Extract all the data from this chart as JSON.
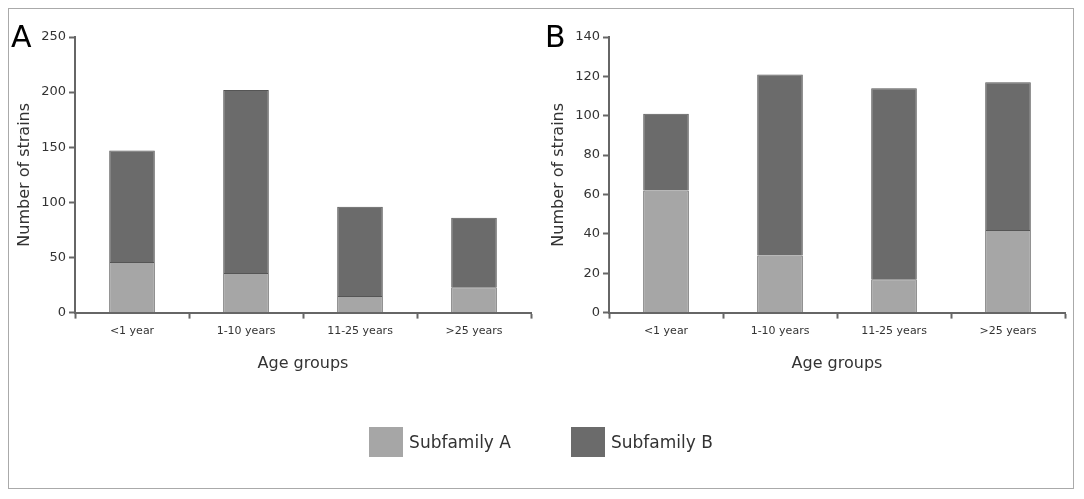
{
  "chart_data": [
    {
      "type": "bar",
      "title": "A",
      "xlabel": "Age groups",
      "ylabel": "Number of strains",
      "categories": [
        "<1 year",
        "1-10 years",
        "11-25 years",
        ">25 years"
      ],
      "stacked": true,
      "ylim": [
        0,
        250
      ],
      "yticks": [
        0,
        50,
        100,
        150,
        200,
        250
      ],
      "grid": false,
      "legend": "bottom",
      "series": [
        {
          "name": "Subfamily A",
          "color": "#a6a6a6",
          "values": [
            46,
            36,
            15,
            23
          ]
        },
        {
          "name": "Subfamily B",
          "color": "#6b6b6b",
          "values": [
            101,
            166,
            81,
            63
          ]
        }
      ]
    },
    {
      "type": "bar",
      "title": "B",
      "xlabel": "Age groups",
      "ylabel": "Number of strains",
      "categories": [
        "<1 year",
        "1-10 years",
        "11-25 years",
        ">25 years"
      ],
      "stacked": true,
      "ylim": [
        0,
        140
      ],
      "yticks": [
        0,
        20,
        40,
        60,
        80,
        100,
        120,
        140
      ],
      "grid": false,
      "series": [
        {
          "color": "#a6a6a6",
          "values": [
            62,
            29,
            17,
            42
          ]
        },
        {
          "color": "#6b6b6b",
          "values": [
            39,
            92,
            97,
            75
          ]
        }
      ]
    }
  ]
}
